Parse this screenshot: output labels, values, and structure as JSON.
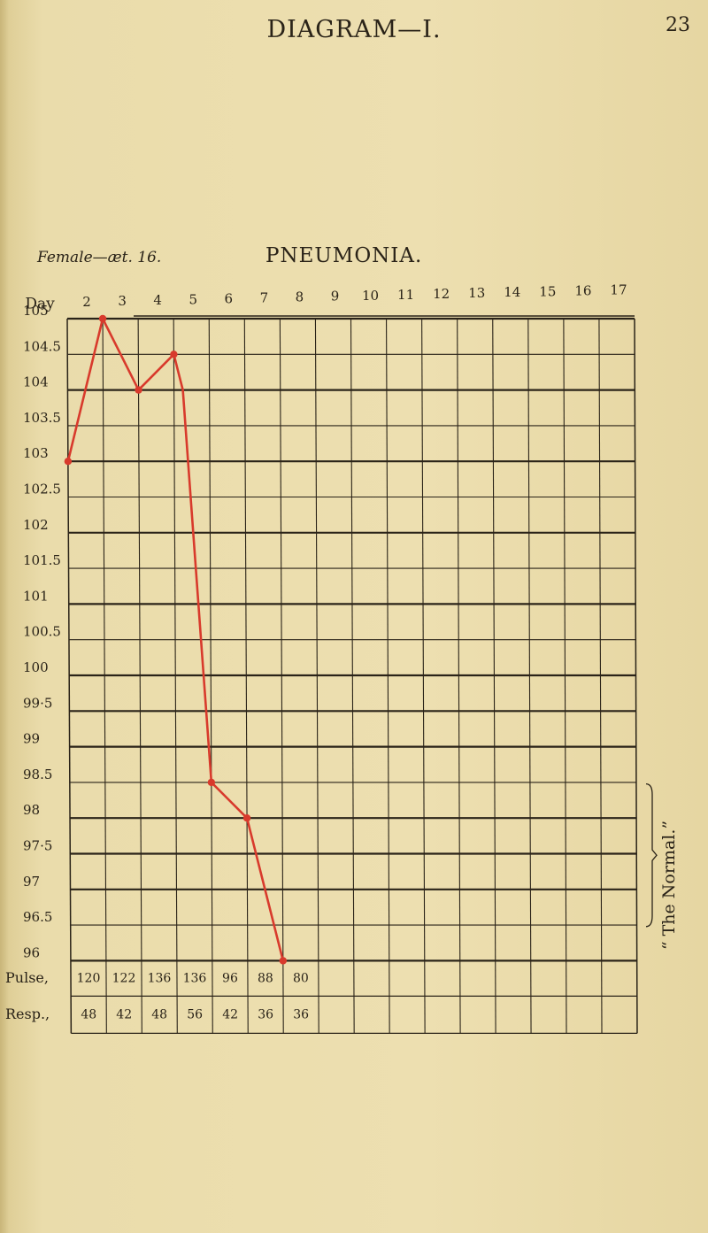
{
  "header": {
    "title": "DIAGRAM—I.",
    "page_number": "23"
  },
  "patient": "Female—æt. 16.",
  "normal_label": "“ The Normal.”",
  "chart_data": {
    "type": "line",
    "title": "PNEUMONIA.",
    "xlabel": "Day",
    "days": [
      "2",
      "3",
      "4",
      "5",
      "6",
      "7",
      "8",
      "9",
      "10",
      "11",
      "12",
      "13",
      "14",
      "15",
      "16",
      "17"
    ],
    "y_ticks": [
      "105",
      "104.5",
      "104",
      "103.5",
      "103",
      "102.5",
      "102",
      "101.5",
      "101",
      "100.5",
      "100",
      "99·5",
      "99",
      "98.5",
      "98",
      "97·5",
      "97",
      "96.5",
      "96"
    ],
    "ylim": [
      96,
      105
    ],
    "series": [
      {
        "points": [
          {
            "x": 2,
            "y": 103
          },
          {
            "x": 3,
            "y": 105
          },
          {
            "x": 4,
            "y": 104
          },
          {
            "x": 5,
            "y": 104.5
          },
          {
            "x": 5.25,
            "y": 104
          },
          {
            "x": 6,
            "y": 98.5
          },
          {
            "x": 7,
            "y": 98
          },
          {
            "x": 8,
            "y": 96
          }
        ]
      }
    ],
    "normal_range": [
      97,
      99
    ],
    "table": {
      "rows": [
        {
          "label": "Pulse,",
          "values": [
            "120",
            "122",
            "136",
            "136",
            "96",
            "88",
            "80",
            "",
            "",
            "",
            "",
            "",
            "",
            "",
            "",
            ""
          ]
        },
        {
          "label": "Resp.,",
          "values": [
            "48",
            "42",
            "48",
            "56",
            "42",
            "36",
            "36",
            "",
            "",
            "",
            "",
            "",
            "",
            "",
            "",
            ""
          ]
        }
      ]
    }
  }
}
